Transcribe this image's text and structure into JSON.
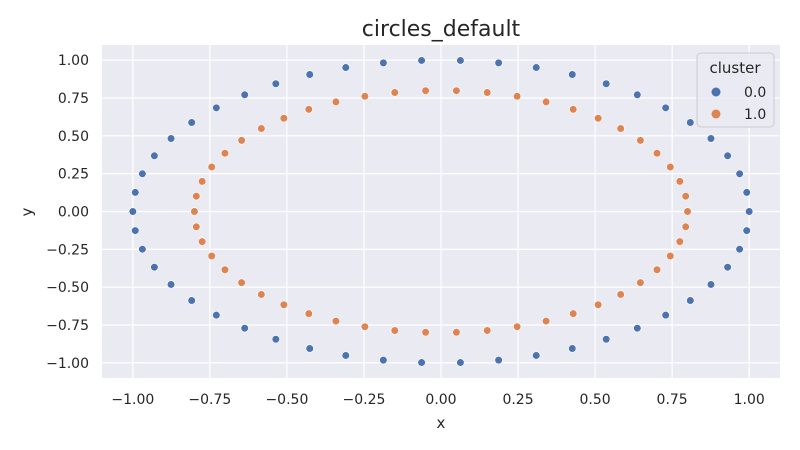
{
  "chart_data": {
    "type": "scatter",
    "title": "circles_default",
    "xlabel": "x",
    "ylabel": "y",
    "xlim": [
      -1.1,
      1.1
    ],
    "ylim": [
      -1.1,
      1.1
    ],
    "xticks": [
      -1.0,
      -0.75,
      -0.5,
      -0.25,
      0.0,
      0.25,
      0.5,
      0.75,
      1.0
    ],
    "yticks": [
      -1.0,
      -0.75,
      -0.5,
      -0.25,
      0.0,
      0.25,
      0.5,
      0.75,
      1.0
    ],
    "xtick_labels": [
      "−1.00",
      "−0.75",
      "−0.50",
      "−0.25",
      "0.00",
      "0.25",
      "0.50",
      "0.75",
      "1.00"
    ],
    "ytick_labels": [
      "−1.00",
      "−0.75",
      "−0.50",
      "−0.25",
      "0.00",
      "0.25",
      "0.50",
      "0.75",
      "1.00"
    ],
    "grid": true,
    "legend": {
      "title": "cluster",
      "placement": "top-right"
    },
    "series": [
      {
        "name": "0.0",
        "color": "#4c72b0",
        "points": [
          [
            1.0,
            0.0
          ],
          [
            0.992,
            0.126
          ],
          [
            0.969,
            0.249
          ],
          [
            0.93,
            0.368
          ],
          [
            0.876,
            0.482
          ],
          [
            0.809,
            0.588
          ],
          [
            0.729,
            0.685
          ],
          [
            0.637,
            0.771
          ],
          [
            0.536,
            0.844
          ],
          [
            0.426,
            0.905
          ],
          [
            0.309,
            0.951
          ],
          [
            0.187,
            0.982
          ],
          [
            0.063,
            0.998
          ],
          [
            -0.063,
            0.998
          ],
          [
            -0.187,
            0.982
          ],
          [
            -0.309,
            0.951
          ],
          [
            -0.426,
            0.905
          ],
          [
            -0.536,
            0.844
          ],
          [
            -0.637,
            0.771
          ],
          [
            -0.729,
            0.685
          ],
          [
            -0.809,
            0.588
          ],
          [
            -0.876,
            0.482
          ],
          [
            -0.93,
            0.368
          ],
          [
            -0.969,
            0.249
          ],
          [
            -0.992,
            0.126
          ],
          [
            -1.0,
            0.0
          ],
          [
            -0.992,
            -0.126
          ],
          [
            -0.969,
            -0.249
          ],
          [
            -0.93,
            -0.368
          ],
          [
            -0.876,
            -0.482
          ],
          [
            -0.809,
            -0.588
          ],
          [
            -0.729,
            -0.685
          ],
          [
            -0.637,
            -0.771
          ],
          [
            -0.536,
            -0.844
          ],
          [
            -0.426,
            -0.905
          ],
          [
            -0.309,
            -0.951
          ],
          [
            -0.187,
            -0.982
          ],
          [
            -0.063,
            -0.998
          ],
          [
            0.063,
            -0.998
          ],
          [
            0.187,
            -0.982
          ],
          [
            0.309,
            -0.951
          ],
          [
            0.426,
            -0.905
          ],
          [
            0.536,
            -0.844
          ],
          [
            0.637,
            -0.771
          ],
          [
            0.729,
            -0.685
          ],
          [
            0.809,
            -0.588
          ],
          [
            0.876,
            -0.482
          ],
          [
            0.93,
            -0.368
          ],
          [
            0.969,
            -0.249
          ],
          [
            0.992,
            -0.126
          ]
        ]
      },
      {
        "name": "1.0",
        "color": "#dd8452",
        "points": [
          [
            0.8,
            0.0
          ],
          [
            0.794,
            0.101
          ],
          [
            0.775,
            0.199
          ],
          [
            0.744,
            0.294
          ],
          [
            0.701,
            0.385
          ],
          [
            0.647,
            0.47
          ],
          [
            0.583,
            0.548
          ],
          [
            0.51,
            0.616
          ],
          [
            0.429,
            0.675
          ],
          [
            0.341,
            0.724
          ],
          [
            0.247,
            0.761
          ],
          [
            0.15,
            0.786
          ],
          [
            0.05,
            0.798
          ],
          [
            -0.05,
            0.798
          ],
          [
            -0.15,
            0.786
          ],
          [
            -0.247,
            0.761
          ],
          [
            -0.341,
            0.724
          ],
          [
            -0.429,
            0.675
          ],
          [
            -0.51,
            0.616
          ],
          [
            -0.583,
            0.548
          ],
          [
            -0.647,
            0.47
          ],
          [
            -0.701,
            0.385
          ],
          [
            -0.744,
            0.294
          ],
          [
            -0.775,
            0.199
          ],
          [
            -0.794,
            0.101
          ],
          [
            -0.8,
            0.0
          ],
          [
            -0.794,
            -0.101
          ],
          [
            -0.775,
            -0.199
          ],
          [
            -0.744,
            -0.294
          ],
          [
            -0.701,
            -0.385
          ],
          [
            -0.647,
            -0.47
          ],
          [
            -0.583,
            -0.548
          ],
          [
            -0.51,
            -0.616
          ],
          [
            -0.429,
            -0.675
          ],
          [
            -0.341,
            -0.724
          ],
          [
            -0.247,
            -0.761
          ],
          [
            -0.15,
            -0.786
          ],
          [
            -0.05,
            -0.798
          ],
          [
            0.05,
            -0.798
          ],
          [
            0.15,
            -0.786
          ],
          [
            0.247,
            -0.761
          ],
          [
            0.341,
            -0.724
          ],
          [
            0.429,
            -0.675
          ],
          [
            0.51,
            -0.616
          ],
          [
            0.583,
            -0.548
          ],
          [
            0.647,
            -0.47
          ],
          [
            0.701,
            -0.385
          ],
          [
            0.744,
            -0.294
          ],
          [
            0.775,
            -0.199
          ],
          [
            0.794,
            -0.101
          ]
        ]
      }
    ]
  }
}
